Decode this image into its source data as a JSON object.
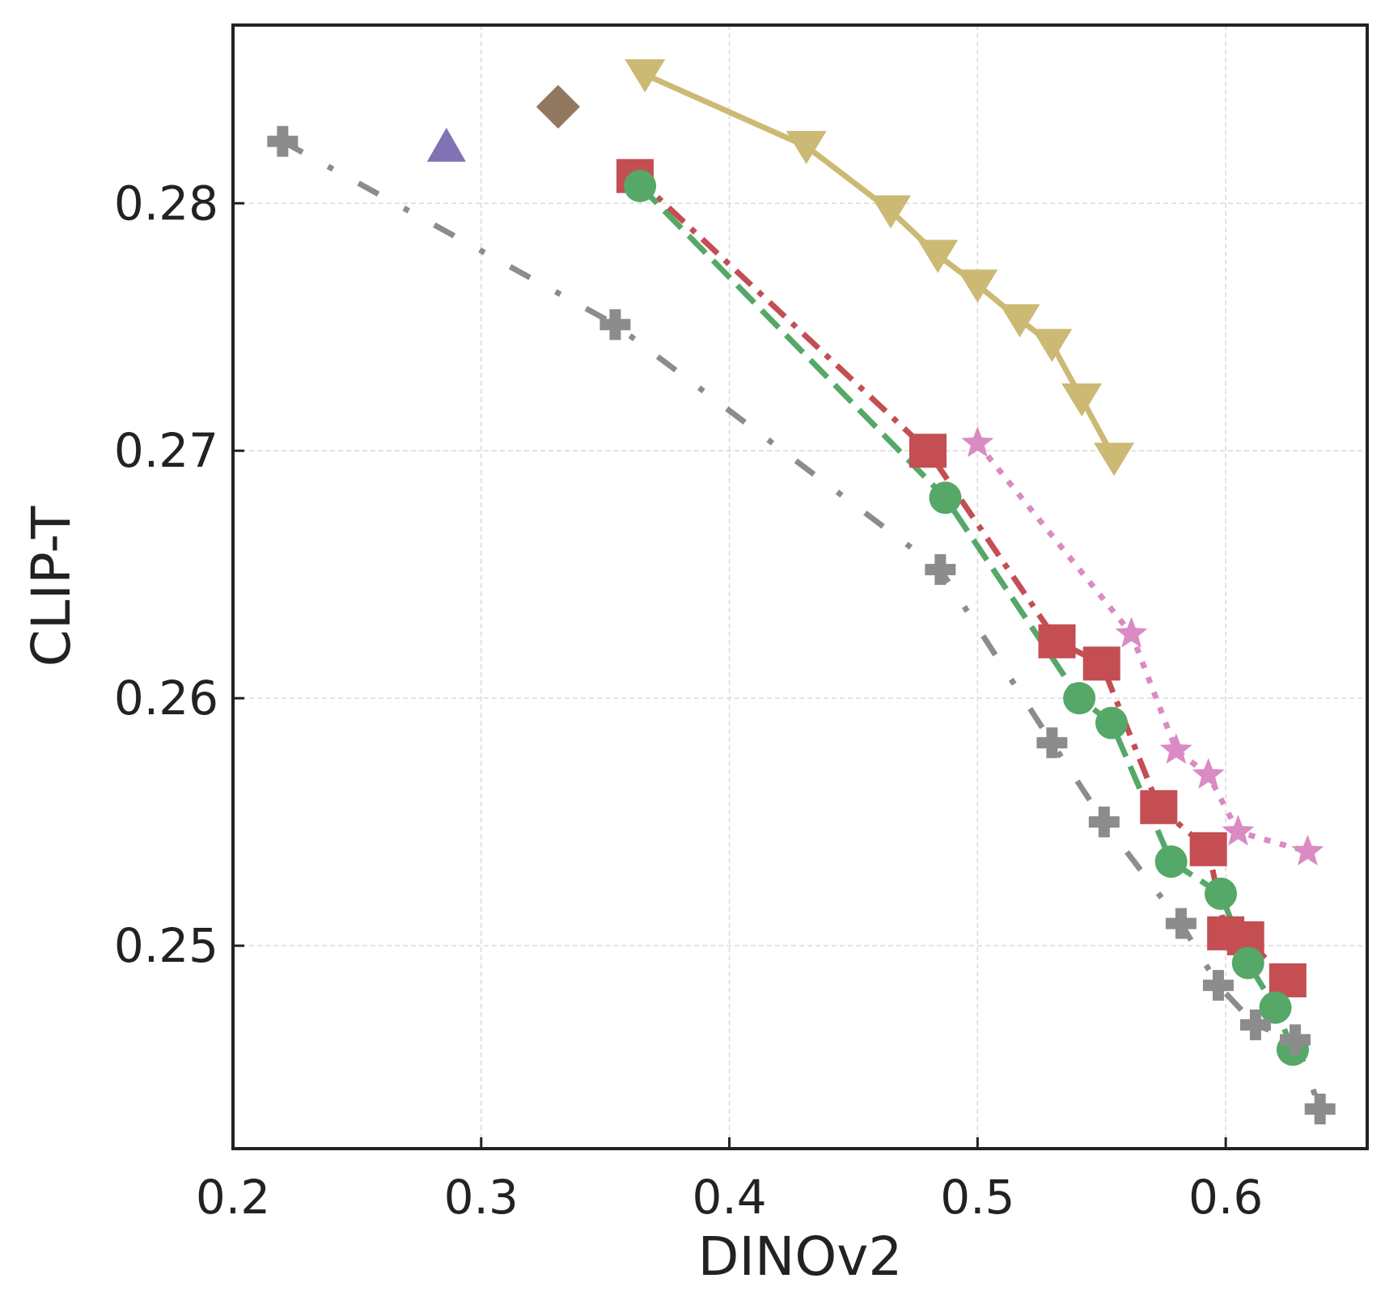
{
  "chart_data": {
    "type": "scatter",
    "title": "",
    "xlabel": "DINOv2",
    "ylabel": "CLIP-T",
    "xlim": [
      0.2,
      0.657
    ],
    "ylim": [
      0.2418,
      0.2872
    ],
    "xticks": [
      0.2,
      0.3,
      0.4,
      0.5,
      0.6
    ],
    "xtick_labels": [
      "0.2",
      "0.3",
      "0.4",
      "0.5",
      "0.6"
    ],
    "yticks": [
      0.25,
      0.26,
      0.27,
      0.28
    ],
    "ytick_labels": [
      "0.25",
      "0.26",
      "0.27",
      "0.28"
    ],
    "grid": true,
    "legend": "none",
    "series": [
      {
        "color": "#ccb974",
        "marker": "triangle-down",
        "line": "solid",
        "x": [
          0.366,
          0.431,
          0.465,
          0.484,
          0.5,
          0.517,
          0.53,
          0.542,
          0.555
        ],
        "y": [
          0.2852,
          0.2823,
          0.2797,
          0.2779,
          0.2767,
          0.2753,
          0.2743,
          0.2721,
          0.2697
        ]
      },
      {
        "color": "#c44e52",
        "marker": "square",
        "line": "dashdot",
        "x": [
          0.362,
          0.48,
          0.532,
          0.55,
          0.573,
          0.593,
          0.6,
          0.608,
          0.625
        ],
        "y": [
          0.2811,
          0.27,
          0.2623,
          0.2614,
          0.2556,
          0.2539,
          0.2505,
          0.2503,
          0.2486
        ]
      },
      {
        "color": "#55a868",
        "marker": "circle",
        "line": "dashed",
        "x": [
          0.364,
          0.487,
          0.541,
          0.554,
          0.578,
          0.598,
          0.609,
          0.62,
          0.627
        ],
        "y": [
          0.2807,
          0.2681,
          0.26,
          0.259,
          0.2534,
          0.2521,
          0.2493,
          0.2475,
          0.2458
        ]
      },
      {
        "color": "#da8bc3",
        "marker": "star",
        "line": "dotted",
        "x": [
          0.5,
          0.562,
          0.58,
          0.593,
          0.605,
          0.633
        ],
        "y": [
          0.2703,
          0.2626,
          0.2579,
          0.2569,
          0.2546,
          0.2538
        ]
      },
      {
        "color": "#8c8c8c",
        "marker": "plus",
        "line": "dashdotdot",
        "x": [
          0.22,
          0.354,
          0.485,
          0.53,
          0.551,
          0.582,
          0.597,
          0.612,
          0.628,
          0.638
        ],
        "y": [
          0.2825,
          0.2751,
          0.2652,
          0.2582,
          0.255,
          0.2509,
          0.2484,
          0.2468,
          0.2462,
          0.2434
        ]
      },
      {
        "color": "#8172b3",
        "marker": "triangle-up",
        "line": "none",
        "x": [
          0.286
        ],
        "y": [
          0.2823
        ]
      },
      {
        "color": "#937860",
        "marker": "diamond",
        "line": "none",
        "x": [
          0.331
        ],
        "y": [
          0.2839
        ]
      }
    ]
  }
}
